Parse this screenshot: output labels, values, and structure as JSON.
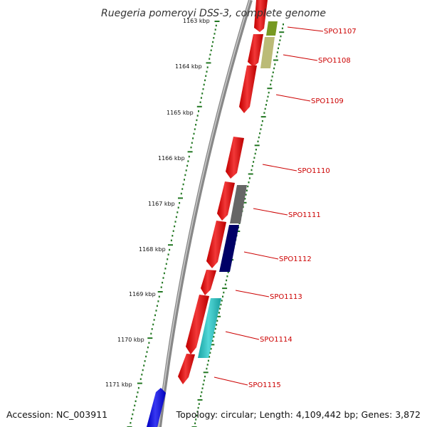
{
  "title": "Ruegeria pomeroyi DSS-3, complete genome",
  "accession": "Accession: NC_003911",
  "topology": "Topology: circular; Length: 4,109,442 bp; Genes: 3,872",
  "kbp_ticks": [
    "1163 kbp",
    "1164 kbp",
    "1165 kbp",
    "1166 kbp",
    "1167 kbp",
    "1168 kbp",
    "1169 kbp",
    "1170 kbp",
    "1171 kbp"
  ],
  "gene_labels": [
    "SPO1107",
    "SPO1108",
    "SPO1109",
    "SPO1110",
    "SPO1111",
    "SPO1112",
    "SPO1113",
    "SPO1114",
    "SPO1115"
  ],
  "colors": {
    "backbone": "#888888",
    "cds": "#ee0000",
    "scale_dots": "#227722",
    "blue_gene": "#0000ee",
    "olive": "#779922",
    "khaki": "#bbbb77",
    "gray": "#666666",
    "navy": "#000066",
    "cyan": "#22cccc"
  }
}
